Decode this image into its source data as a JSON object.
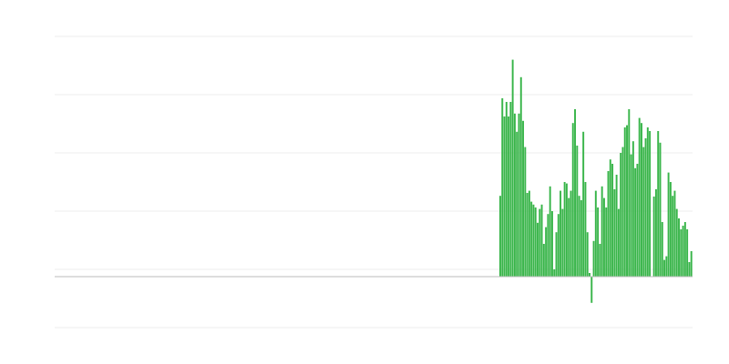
{
  "chart_data": {
    "type": "bar",
    "categories": [
      null,
      null,
      null,
      null,
      null,
      null,
      null,
      null,
      null,
      null,
      null,
      null,
      null,
      null,
      null,
      null,
      null,
      null,
      null,
      null,
      null,
      null,
      null,
      null,
      null,
      null,
      null,
      null,
      null,
      null,
      null,
      null,
      null,
      null,
      null,
      null,
      null,
      null,
      null,
      null,
      null,
      null,
      null,
      null,
      null,
      null,
      null,
      null,
      null,
      null,
      null,
      null,
      null,
      null,
      null,
      null,
      null,
      null,
      null,
      null,
      null,
      null,
      null,
      null,
      null,
      null,
      null,
      null,
      null,
      null,
      null,
      null,
      null,
      null,
      null,
      null,
      null,
      null,
      null,
      null,
      null,
      null,
      null,
      null,
      null,
      null,
      null,
      null,
      null,
      null,
      null,
      null,
      null
    ],
    "values": [
      11.1,
      24.5,
      22,
      24,
      22,
      24,
      29.8,
      22.4,
      19.9,
      22.4,
      27.4,
      21.4,
      17.8,
      11.5,
      11.8,
      10.3,
      9.9,
      9.5,
      7.4,
      9.3,
      9.9,
      4.5,
      6.8,
      8.6,
      12.4,
      9,
      1,
      6.1,
      8.6,
      11.8,
      9.3,
      13,
      12.8,
      10.8,
      11.8,
      21.1,
      23,
      18,
      11.1,
      10.5,
      19.9,
      13,
      6.1,
      0.5,
      -3.6,
      4.9,
      11.8,
      9.5,
      4.5,
      12.4,
      10.8,
      9.5,
      14.5,
      16.1,
      15.5,
      12,
      14,
      9.3,
      17,
      17.8,
      20.5,
      20.8,
      23,
      16.8,
      18.6,
      14.9,
      15.5,
      21.8,
      21.1,
      17.8,
      19,
      20.5,
      20,
      0,
      11,
      12,
      20,
      18.4,
      7.5,
      2.3,
      2.8,
      14.3,
      13,
      11.1,
      11.8,
      9.3,
      8,
      6.5,
      7,
      7.5,
      6.5,
      2,
      3.5
    ],
    "color": "#39b54a",
    "ylim": [
      -7,
      33
    ],
    "yticks": [
      -7,
      1,
      9,
      17,
      25,
      33
    ],
    "grid": true
  }
}
